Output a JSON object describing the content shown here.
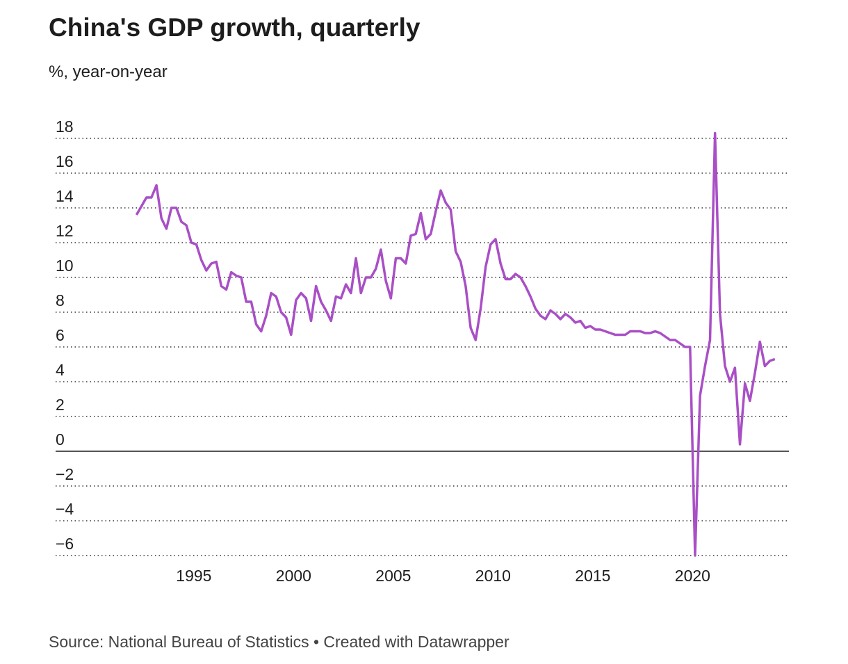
{
  "chart_data": {
    "type": "line",
    "title": "China's GDP growth, quarterly",
    "subtitle": "%, year-on-year",
    "source": "Source: National Bureau of Statistics • Created with Datawrapper",
    "color": "#a94fc6",
    "x": [
      1992.125,
      1992.375,
      1992.625,
      1992.875,
      1993.125,
      1993.375,
      1993.625,
      1993.875,
      1994.125,
      1994.375,
      1994.625,
      1994.875,
      1995.125,
      1995.375,
      1995.625,
      1995.875,
      1996.125,
      1996.375,
      1996.625,
      1996.875,
      1997.125,
      1997.375,
      1997.625,
      1997.875,
      1998.125,
      1998.375,
      1998.625,
      1998.875,
      1999.125,
      1999.375,
      1999.625,
      1999.875,
      2000.125,
      2000.375,
      2000.625,
      2000.875,
      2001.125,
      2001.375,
      2001.625,
      2001.875,
      2002.125,
      2002.375,
      2002.625,
      2002.875,
      2003.125,
      2003.375,
      2003.625,
      2003.875,
      2004.125,
      2004.375,
      2004.625,
      2004.875,
      2005.125,
      2005.375,
      2005.625,
      2005.875,
      2006.125,
      2006.375,
      2006.625,
      2006.875,
      2007.125,
      2007.375,
      2007.625,
      2007.875,
      2008.125,
      2008.375,
      2008.625,
      2008.875,
      2009.125,
      2009.375,
      2009.625,
      2009.875,
      2010.125,
      2010.375,
      2010.625,
      2010.875,
      2011.125,
      2011.375,
      2011.625,
      2011.875,
      2012.125,
      2012.375,
      2012.625,
      2012.875,
      2013.125,
      2013.375,
      2013.625,
      2013.875,
      2014.125,
      2014.375,
      2014.625,
      2014.875,
      2015.125,
      2015.375,
      2015.625,
      2015.875,
      2016.125,
      2016.375,
      2016.625,
      2016.875,
      2017.125,
      2017.375,
      2017.625,
      2017.875,
      2018.125,
      2018.375,
      2018.625,
      2018.875,
      2019.125,
      2019.375,
      2019.625,
      2019.875,
      2020.125,
      2020.375,
      2020.625,
      2020.875,
      2021.125,
      2021.375,
      2021.625,
      2021.875,
      2022.125,
      2022.375,
      2022.625,
      2022.875,
      2023.125,
      2023.375,
      2023.625,
      2023.875,
      2024.125
    ],
    "values": [
      13.6,
      14.1,
      14.6,
      14.6,
      15.3,
      13.4,
      12.8,
      14.0,
      14.0,
      13.2,
      13.0,
      12.0,
      11.9,
      11.0,
      10.4,
      10.8,
      10.9,
      9.5,
      9.3,
      10.3,
      10.1,
      10.0,
      8.6,
      8.6,
      7.3,
      6.9,
      7.8,
      9.1,
      8.9,
      8.0,
      7.7,
      6.7,
      8.7,
      9.1,
      8.8,
      7.5,
      9.5,
      8.6,
      8.1,
      7.5,
      8.9,
      8.8,
      9.6,
      9.1,
      11.1,
      9.1,
      10.0,
      10.0,
      10.5,
      11.6,
      9.8,
      8.8,
      11.1,
      11.1,
      10.8,
      12.4,
      12.5,
      13.7,
      12.2,
      12.5,
      13.8,
      15.0,
      14.3,
      13.9,
      11.5,
      10.9,
      9.5,
      7.1,
      6.4,
      8.2,
      10.6,
      11.9,
      12.2,
      10.8,
      9.9,
      9.9,
      10.2,
      10.0,
      9.5,
      8.9,
      8.2,
      7.8,
      7.6,
      8.1,
      7.9,
      7.6,
      7.9,
      7.7,
      7.4,
      7.5,
      7.1,
      7.2,
      7.0,
      7.0,
      6.9,
      6.8,
      6.7,
      6.7,
      6.7,
      6.9,
      6.9,
      6.9,
      6.8,
      6.8,
      6.9,
      6.8,
      6.6,
      6.4,
      6.4,
      6.2,
      6.0,
      6.0,
      -6.0,
      3.2,
      4.9,
      6.4,
      18.3,
      7.9,
      4.9,
      4.0,
      4.8,
      0.4,
      3.9,
      2.9,
      4.5,
      6.3,
      4.9,
      5.2,
      5.3
    ],
    "xlim": [
      1988.07,
      2024.83
    ],
    "xticks": [
      1995,
      2000,
      2005,
      2010,
      2015,
      2020
    ],
    "ylim": [
      -6,
      18
    ],
    "yticks": [
      {
        "value": -6,
        "label": "−6"
      },
      {
        "value": -4,
        "label": "−4"
      },
      {
        "value": -2,
        "label": "−2"
      },
      0,
      2,
      4,
      6,
      8,
      10,
      12,
      14,
      16,
      18
    ],
    "grid": true
  }
}
